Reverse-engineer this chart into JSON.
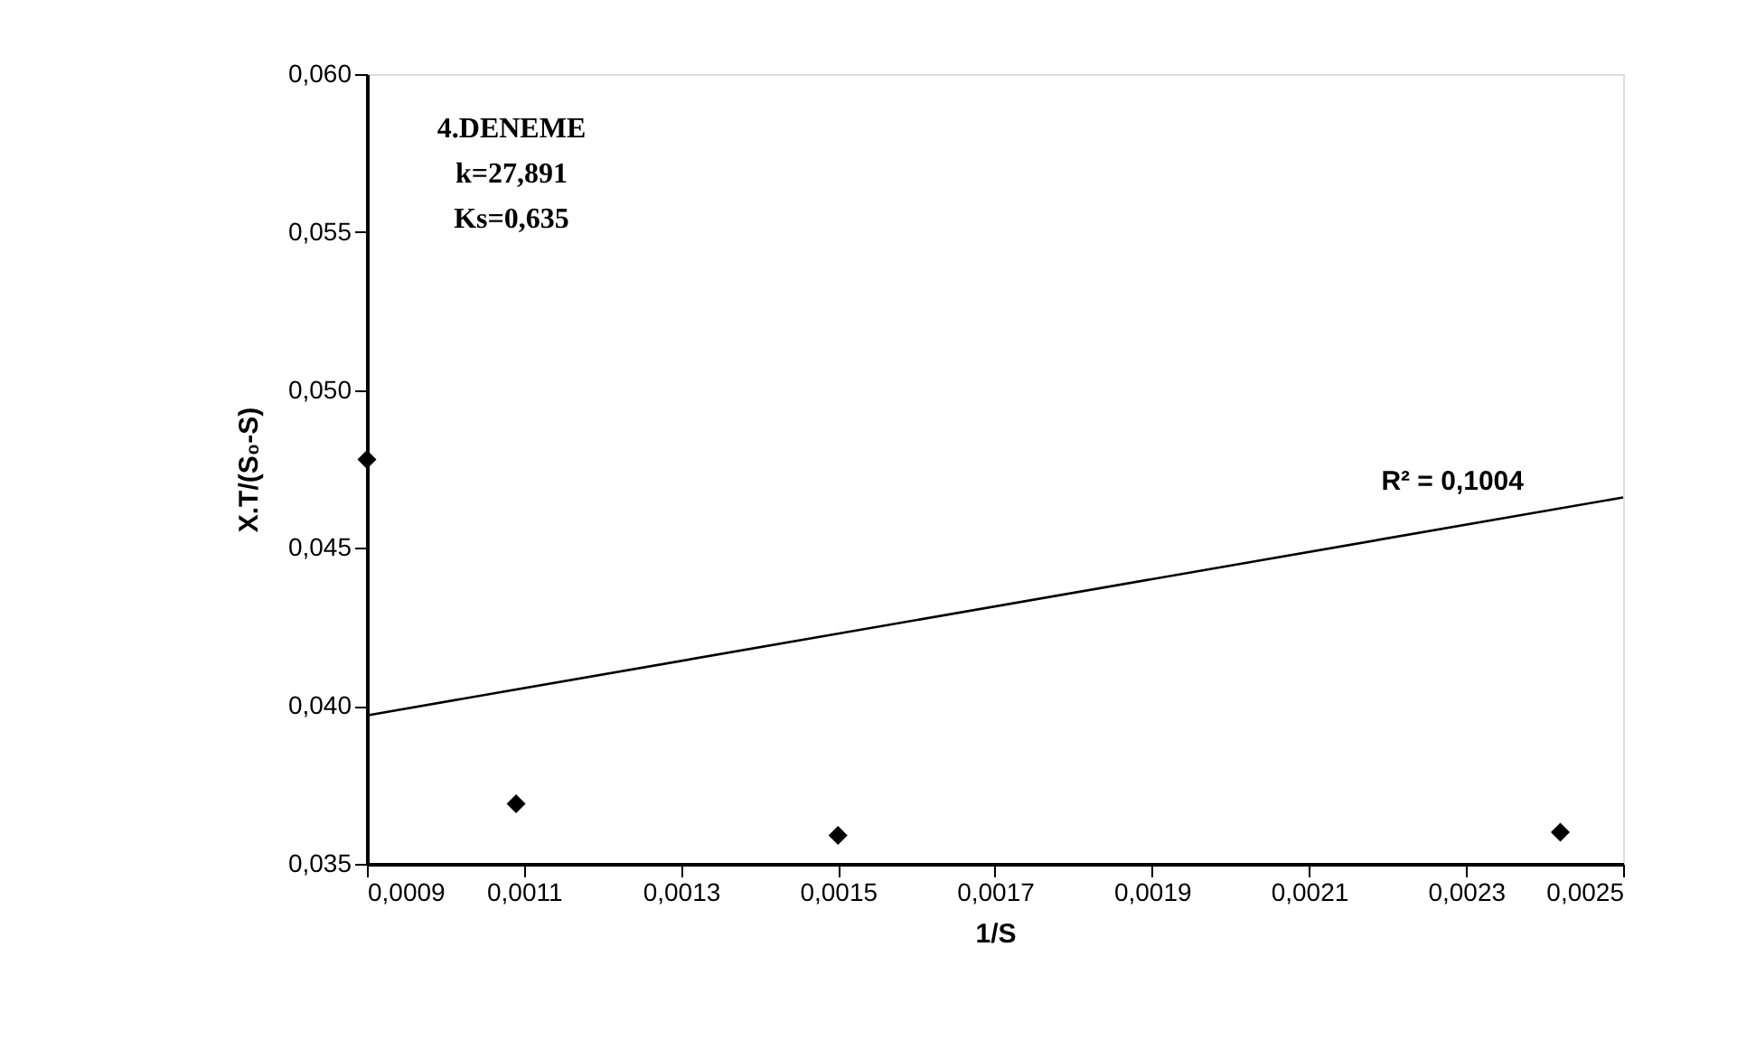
{
  "chart_data": {
    "type": "scatter",
    "xlabel": "1/S",
    "ylabel": "X.T/(S₀-S)",
    "xlim": [
      0.0009,
      0.0025
    ],
    "ylim": [
      0.035,
      0.06
    ],
    "xticks": [
      {
        "value": 0.0009,
        "label": "0,0009"
      },
      {
        "value": 0.0011,
        "label": "0,0011"
      },
      {
        "value": 0.0013,
        "label": "0,0013"
      },
      {
        "value": 0.0015,
        "label": "0,0015"
      },
      {
        "value": 0.0017,
        "label": "0,0017"
      },
      {
        "value": 0.0019,
        "label": "0,0019"
      },
      {
        "value": 0.0021,
        "label": "0,0021"
      },
      {
        "value": 0.0023,
        "label": "0,0023"
      },
      {
        "value": 0.0025,
        "label": "0,0025"
      }
    ],
    "yticks": [
      {
        "value": 0.035,
        "label": "0,035"
      },
      {
        "value": 0.04,
        "label": "0,040"
      },
      {
        "value": 0.045,
        "label": "0,045"
      },
      {
        "value": 0.05,
        "label": "0,050"
      },
      {
        "value": 0.055,
        "label": "0,055"
      },
      {
        "value": 0.06,
        "label": "0,060"
      }
    ],
    "series": [
      {
        "color": "#000000",
        "marker": "diamond",
        "x": [
          0.0009,
          0.00109,
          0.0015,
          0.00242
        ],
        "values": [
          0.0478,
          0.0369,
          0.0359,
          0.036
        ]
      },
      {
        "type": "line",
        "color": "#000000",
        "marker": "none",
        "line_style": "solid",
        "x": [
          0.0009,
          0.0025
        ],
        "values": [
          0.0397,
          0.0466
        ]
      }
    ],
    "annotations": [
      "4.DENEME",
      "k=27,891",
      "Ks=0,635",
      "R² = 0,1004"
    ],
    "grid": false
  }
}
